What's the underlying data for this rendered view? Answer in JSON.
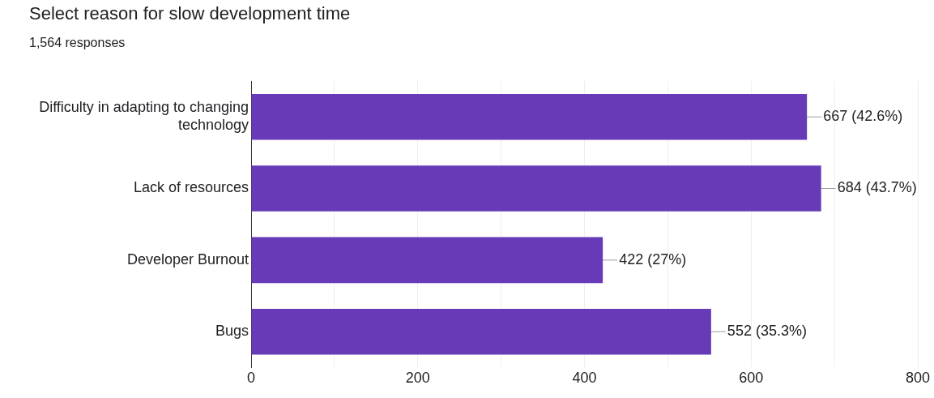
{
  "chart_data": {
    "type": "bar",
    "orientation": "horizontal",
    "title": "Select reason for slow development time",
    "subtitle": "1,564 responses",
    "categories": [
      "Difficulty in adapting to changing technology",
      "Lack of resources",
      "Developer Burnout",
      "Bugs"
    ],
    "values": [
      667,
      684,
      422,
      552
    ],
    "value_labels": [
      "667 (42.6%)",
      "684 (43.7%)",
      "422 (27%)",
      "552 (35.3%)"
    ],
    "color": "#673ab7",
    "xlim": [
      0,
      800
    ],
    "xticks": [
      0,
      {
        "value": 100,
        "label": null
      },
      200,
      {
        "value": 300,
        "label": null
      },
      400,
      {
        "value": 500,
        "label": null
      },
      600,
      {
        "value": 700,
        "label": null
      },
      800
    ],
    "grid": "x",
    "legend": false
  }
}
